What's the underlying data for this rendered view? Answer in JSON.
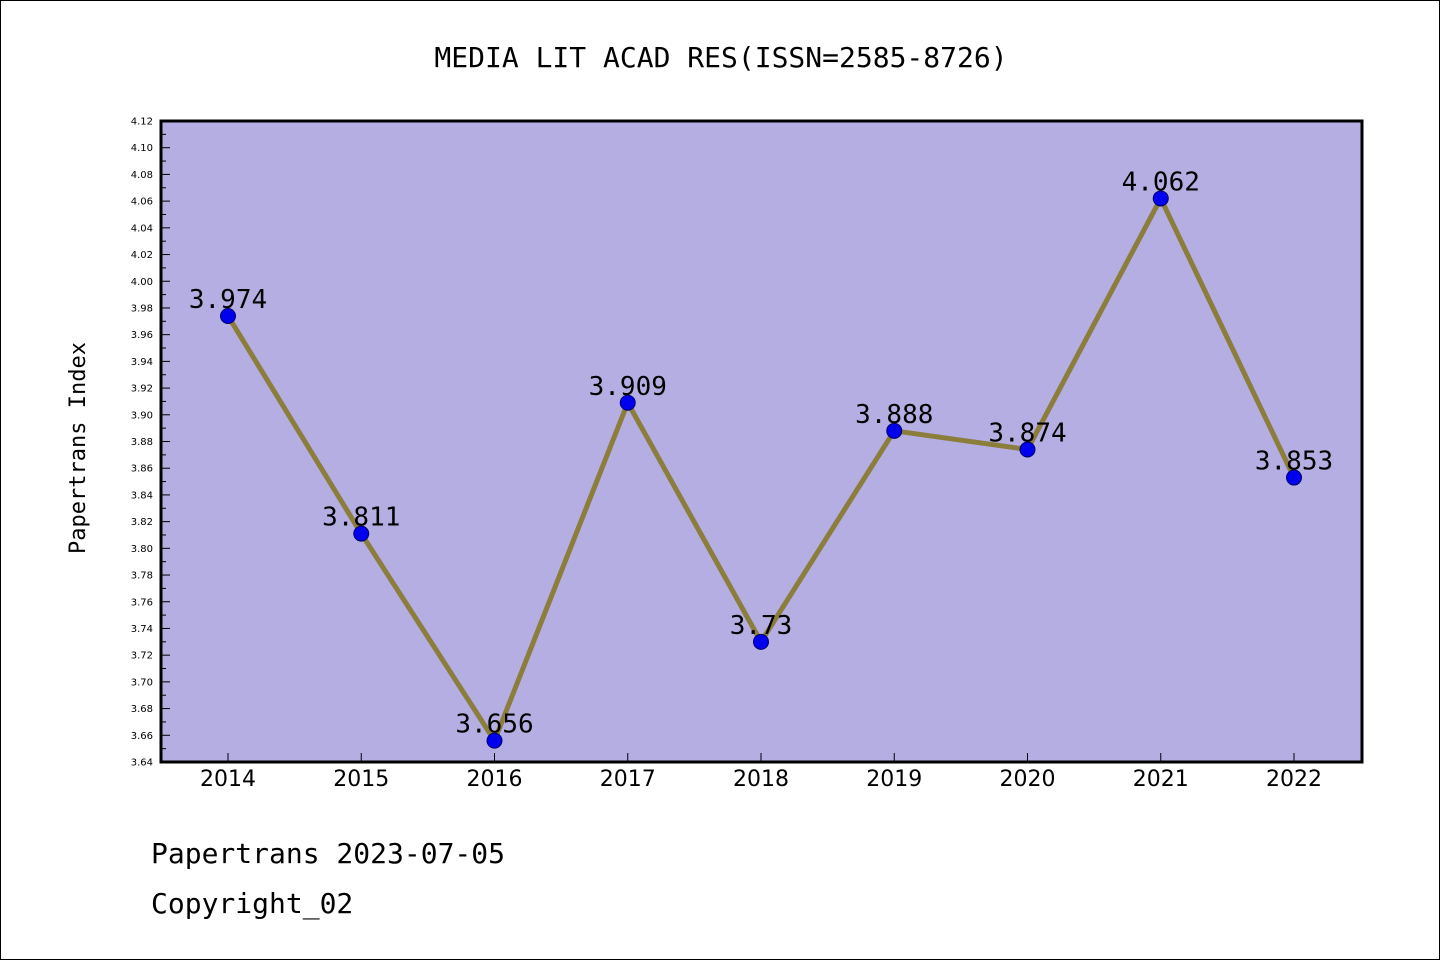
{
  "footer": {
    "line1": "Papertrans 2023-07-05",
    "line2": "Copyright_02"
  },
  "colors": {
    "plot_background": "#b5aee2",
    "line": "#8b7d3a",
    "marker_fill": "#0000ee",
    "marker_stroke": "#000066",
    "axis": "#000000"
  },
  "chart_data": {
    "type": "line",
    "title": "MEDIA LIT ACAD RES(ISSN=2585-8726)",
    "xlabel": "",
    "ylabel": "Papertrans Index",
    "categories": [
      "2014",
      "2015",
      "2016",
      "2017",
      "2018",
      "2019",
      "2020",
      "2021",
      "2022"
    ],
    "values": [
      3.974,
      3.811,
      3.656,
      3.909,
      3.73,
      3.888,
      3.874,
      4.062,
      3.853
    ],
    "data_labels": [
      "3.974",
      "3.811",
      "3.656",
      "3.909",
      "3.73",
      "3.888",
      "3.874",
      "4.062",
      "3.853"
    ],
    "ylim": [
      3.64,
      4.12
    ],
    "y_ticks": [
      "3.64",
      "3.66",
      "3.68",
      "3.70",
      "3.72",
      "3.74",
      "3.76",
      "3.78",
      "3.80",
      "3.82",
      "3.84",
      "3.86",
      "3.88",
      "3.90",
      "3.92",
      "3.94",
      "3.96",
      "3.98",
      "4.00",
      "4.02",
      "4.04",
      "4.06",
      "4.08",
      "4.10",
      "4.12"
    ],
    "grid": false,
    "legend": "none"
  }
}
